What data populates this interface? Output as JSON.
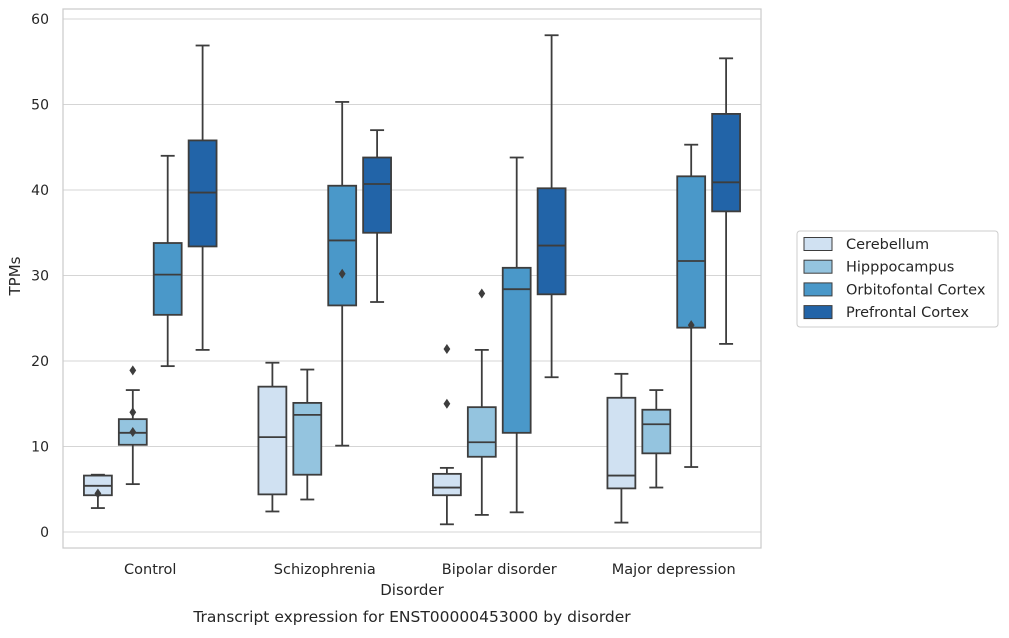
{
  "caption": "Transcript expression for ENST00000453000 by disorder",
  "chart_data": {
    "type": "box",
    "xlabel": "Disorder",
    "ylabel": "TPMs",
    "ylim": [
      -2,
      61
    ],
    "yticks": [
      0,
      10,
      20,
      30,
      40,
      50,
      60
    ],
    "grid": "horizontal",
    "legend_position": "right",
    "categories": [
      "Control",
      "Schizophrenia",
      "Bipolar disorder",
      "Major depression"
    ],
    "series": [
      {
        "name": "Cerebellum",
        "color": "#d0e1f2",
        "boxes": [
          {
            "min": 2.8,
            "q1": 4.3,
            "median": 5.4,
            "q3": 6.6,
            "max": 6.7,
            "outliers": [
              4.5
            ]
          },
          {
            "min": 2.4,
            "q1": 4.4,
            "median": 11.1,
            "q3": 17.0,
            "max": 19.8,
            "outliers": []
          },
          {
            "min": 0.9,
            "q1": 4.3,
            "median": 5.2,
            "q3": 6.8,
            "max": 7.5,
            "outliers": [
              15.0,
              21.4
            ]
          },
          {
            "min": 1.1,
            "q1": 5.1,
            "median": 6.6,
            "q3": 15.7,
            "max": 18.5,
            "outliers": []
          }
        ]
      },
      {
        "name": "Hipppocampus",
        "color": "#94c4df",
        "boxes": [
          {
            "min": 5.6,
            "q1": 10.2,
            "median": 11.6,
            "q3": 13.2,
            "max": 16.6,
            "outliers": [
              11.7,
              14.0,
              18.9
            ]
          },
          {
            "min": 3.8,
            "q1": 6.7,
            "median": 13.7,
            "q3": 15.1,
            "max": 19.0,
            "outliers": []
          },
          {
            "min": 2.0,
            "q1": 8.8,
            "median": 10.5,
            "q3": 14.6,
            "max": 21.3,
            "outliers": [
              27.9
            ]
          },
          {
            "min": 5.2,
            "q1": 9.2,
            "median": 12.6,
            "q3": 14.3,
            "max": 16.6,
            "outliers": []
          }
        ]
      },
      {
        "name": "Orbitofontal Cortex",
        "color": "#4a98c9",
        "boxes": [
          {
            "min": 19.4,
            "q1": 25.4,
            "median": 30.1,
            "q3": 33.8,
            "max": 44.0,
            "outliers": []
          },
          {
            "min": 10.1,
            "q1": 26.5,
            "median": 34.1,
            "q3": 40.5,
            "max": 50.3,
            "outliers": [
              30.2
            ]
          },
          {
            "min": 2.3,
            "q1": 11.6,
            "median": 28.4,
            "q3": 30.9,
            "max": 43.8,
            "outliers": []
          },
          {
            "min": 7.6,
            "q1": 23.9,
            "median": 31.7,
            "q3": 41.6,
            "max": 45.3,
            "outliers": [
              24.2
            ]
          }
        ]
      },
      {
        "name": "Prefrontal Cortex",
        "color": "#2264a8",
        "boxes": [
          {
            "min": 21.3,
            "q1": 33.4,
            "median": 39.7,
            "q3": 45.8,
            "max": 56.9,
            "outliers": []
          },
          {
            "min": 26.9,
            "q1": 35.0,
            "median": 40.7,
            "q3": 43.8,
            "max": 47.0,
            "outliers": []
          },
          {
            "min": 18.1,
            "q1": 27.8,
            "median": 33.5,
            "q3": 40.2,
            "max": 58.1,
            "outliers": []
          },
          {
            "min": 22.0,
            "q1": 37.5,
            "median": 40.9,
            "q3": 48.9,
            "max": 55.4,
            "outliers": []
          }
        ]
      }
    ]
  }
}
